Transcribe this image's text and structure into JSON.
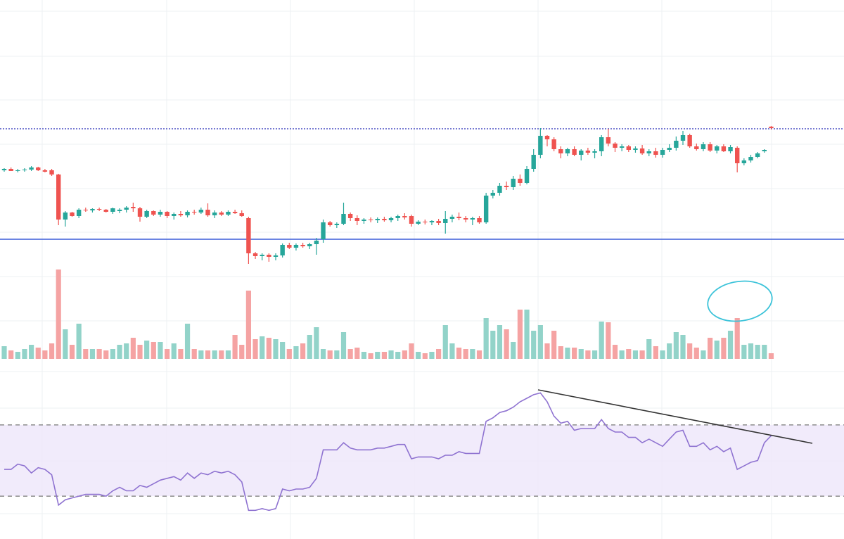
{
  "chart_data": {
    "type": "candlestick",
    "ylim": [
      0,
      420
    ],
    "up_color": "#26a69a",
    "down_color": "#ef5350",
    "levels": [
      {
        "value": 237,
        "color": "#4a4fc4",
        "style": "dotted"
      },
      {
        "value": 80,
        "color": "#3a5bd9",
        "style": "solid"
      }
    ],
    "candles": [
      [
        178,
        181,
        176,
        180
      ],
      [
        180,
        182,
        177,
        177
      ],
      [
        177,
        180,
        175,
        178
      ],
      [
        178,
        181,
        176,
        179
      ],
      [
        179,
        184,
        177,
        182
      ],
      [
        182,
        183,
        177,
        178
      ],
      [
        178,
        180,
        175,
        176
      ],
      [
        178,
        180,
        170,
        172
      ],
      [
        172,
        173,
        100,
        108
      ],
      [
        108,
        120,
        98,
        118
      ],
      [
        118,
        119,
        112,
        113
      ],
      [
        113,
        124,
        110,
        122
      ],
      [
        122,
        125,
        119,
        121
      ],
      [
        121,
        124,
        118,
        123
      ],
      [
        123,
        125,
        120,
        122
      ],
      [
        122,
        123,
        118,
        119
      ],
      [
        119,
        125,
        116,
        124
      ],
      [
        120,
        124,
        117,
        122
      ],
      [
        122,
        127,
        118,
        125
      ],
      [
        126,
        132,
        119,
        124
      ],
      [
        124,
        126,
        105,
        112
      ],
      [
        112,
        122,
        110,
        120
      ],
      [
        120,
        121,
        113,
        115
      ],
      [
        115,
        122,
        112,
        119
      ],
      [
        119,
        120,
        110,
        113
      ],
      [
        113,
        118,
        108,
        116
      ],
      [
        116,
        120,
        112,
        114
      ],
      [
        114,
        121,
        111,
        119
      ],
      [
        119,
        122,
        115,
        118
      ],
      [
        118,
        125,
        116,
        122
      ],
      [
        122,
        131,
        112,
        114
      ],
      [
        114,
        121,
        110,
        118
      ],
      [
        118,
        120,
        113,
        115
      ],
      [
        115,
        121,
        113,
        119
      ],
      [
        119,
        122,
        116,
        117
      ],
      [
        117,
        121,
        112,
        113
      ],
      [
        110,
        112,
        45,
        60
      ],
      [
        60,
        62,
        52,
        56
      ],
      [
        56,
        60,
        50,
        58
      ],
      [
        58,
        60,
        48,
        55
      ],
      [
        55,
        60,
        50,
        57
      ],
      [
        57,
        74,
        54,
        72
      ],
      [
        72,
        75,
        66,
        68
      ],
      [
        68,
        74,
        64,
        72
      ],
      [
        72,
        75,
        68,
        70
      ],
      [
        70,
        75,
        66,
        73
      ],
      [
        73,
        82,
        58,
        78
      ],
      [
        80,
        108,
        75,
        104
      ],
      [
        104,
        106,
        98,
        100
      ],
      [
        100,
        104,
        96,
        102
      ],
      [
        102,
        132,
        100,
        116
      ],
      [
        116,
        118,
        106,
        110
      ],
      [
        110,
        114,
        100,
        106
      ],
      [
        106,
        110,
        102,
        108
      ],
      [
        108,
        111,
        104,
        107
      ],
      [
        107,
        111,
        103,
        109
      ],
      [
        109,
        112,
        105,
        107
      ],
      [
        107,
        112,
        104,
        110
      ],
      [
        110,
        115,
        106,
        113
      ],
      [
        113,
        117,
        108,
        111
      ],
      [
        113,
        115,
        98,
        102
      ],
      [
        102,
        107,
        100,
        105
      ],
      [
        105,
        108,
        101,
        104
      ],
      [
        104,
        107,
        100,
        106
      ],
      [
        106,
        109,
        100,
        103
      ],
      [
        103,
        120,
        88,
        109
      ],
      [
        109,
        115,
        104,
        112
      ],
      [
        112,
        118,
        107,
        110
      ],
      [
        110,
        113,
        104,
        108
      ],
      [
        108,
        112,
        100,
        110
      ],
      [
        110,
        113,
        102,
        104
      ],
      [
        104,
        146,
        102,
        142
      ],
      [
        142,
        150,
        138,
        146
      ],
      [
        146,
        160,
        142,
        156
      ],
      [
        156,
        162,
        150,
        154
      ],
      [
        154,
        170,
        150,
        166
      ],
      [
        166,
        172,
        156,
        160
      ],
      [
        160,
        184,
        158,
        180
      ],
      [
        180,
        208,
        176,
        200
      ],
      [
        200,
        238,
        195,
        227
      ],
      [
        227,
        228,
        212,
        222
      ],
      [
        222,
        225,
        205,
        208
      ],
      [
        208,
        212,
        195,
        202
      ],
      [
        202,
        210,
        198,
        208
      ],
      [
        208,
        212,
        198,
        200
      ],
      [
        200,
        208,
        192,
        206
      ],
      [
        206,
        210,
        200,
        203
      ],
      [
        203,
        208,
        195,
        205
      ],
      [
        205,
        228,
        198,
        225
      ],
      [
        225,
        237,
        212,
        216
      ],
      [
        216,
        218,
        204,
        210
      ],
      [
        210,
        215,
        205,
        212
      ],
      [
        212,
        214,
        204,
        207
      ],
      [
        207,
        212,
        203,
        209
      ],
      [
        209,
        214,
        200,
        202
      ],
      [
        202,
        208,
        198,
        205
      ],
      [
        205,
        210,
        196,
        200
      ],
      [
        200,
        210,
        196,
        207
      ],
      [
        207,
        215,
        204,
        210
      ],
      [
        210,
        226,
        206,
        220
      ],
      [
        220,
        234,
        214,
        228
      ],
      [
        228,
        230,
        210,
        212
      ],
      [
        212,
        216,
        206,
        208
      ],
      [
        208,
        218,
        205,
        215
      ],
      [
        215,
        218,
        204,
        206
      ],
      [
        206,
        214,
        202,
        212
      ],
      [
        212,
        215,
        204,
        205
      ],
      [
        205,
        214,
        202,
        211
      ],
      [
        210,
        212,
        175,
        188
      ],
      [
        188,
        195,
        185,
        192
      ],
      [
        192,
        200,
        189,
        197
      ],
      [
        197,
        204,
        195,
        202
      ],
      [
        205,
        208,
        203,
        207
      ],
      [
        240,
        241,
        236,
        238
      ]
    ],
    "volume": {
      "ylim": [
        0,
        130
      ],
      "up_color": "#92d3c9",
      "down_color": "#f5a3a3",
      "values": [
        18,
        12,
        10,
        14,
        20,
        16,
        12,
        22,
        127,
        42,
        20,
        50,
        14,
        14,
        14,
        12,
        14,
        20,
        22,
        30,
        20,
        26,
        24,
        24,
        14,
        22,
        14,
        50,
        14,
        12,
        12,
        12,
        12,
        12,
        34,
        20,
        97,
        28,
        32,
        30,
        28,
        24,
        14,
        18,
        22,
        34,
        45,
        14,
        12,
        12,
        38,
        14,
        16,
        10,
        8,
        10,
        10,
        12,
        10,
        12,
        22,
        10,
        8,
        10,
        14,
        48,
        22,
        16,
        14,
        14,
        12,
        58,
        40,
        48,
        42,
        24,
        70,
        70,
        40,
        48,
        22,
        40,
        18,
        16,
        16,
        14,
        12,
        12,
        53,
        52,
        20,
        12,
        14,
        12,
        12,
        28,
        18,
        12,
        22,
        38,
        34,
        22,
        16,
        12,
        30,
        26,
        30,
        40,
        58,
        20,
        22,
        20,
        20,
        8
      ]
    },
    "rsi": {
      "ylim": [
        0,
        100
      ],
      "bands": [
        30,
        70
      ],
      "color": "#8f73d1",
      "band_color": "#ede6fa",
      "values": [
        45,
        45,
        48,
        47,
        43,
        46,
        45,
        42,
        25,
        28,
        29,
        30,
        31,
        31,
        31,
        30,
        33,
        35,
        33,
        33,
        36,
        35,
        37,
        39,
        40,
        41,
        39,
        43,
        40,
        43,
        42,
        44,
        43,
        44,
        42,
        38,
        22,
        22,
        23,
        22,
        23,
        34,
        33,
        34,
        34,
        35,
        40,
        56,
        56,
        56,
        60,
        57,
        56,
        56,
        56,
        57,
        57,
        58,
        59,
        59,
        51,
        52,
        52,
        52,
        51,
        53,
        53,
        55,
        54,
        54,
        54,
        72,
        74,
        77,
        78,
        80,
        83,
        85,
        87,
        88,
        83,
        75,
        71,
        72,
        67,
        68,
        68,
        68,
        73,
        68,
        66,
        66,
        63,
        63,
        60,
        62,
        60,
        58,
        62,
        66,
        67,
        58,
        58,
        60,
        56,
        58,
        55,
        57,
        45,
        47,
        49,
        50,
        60,
        64
      ]
    }
  }
}
